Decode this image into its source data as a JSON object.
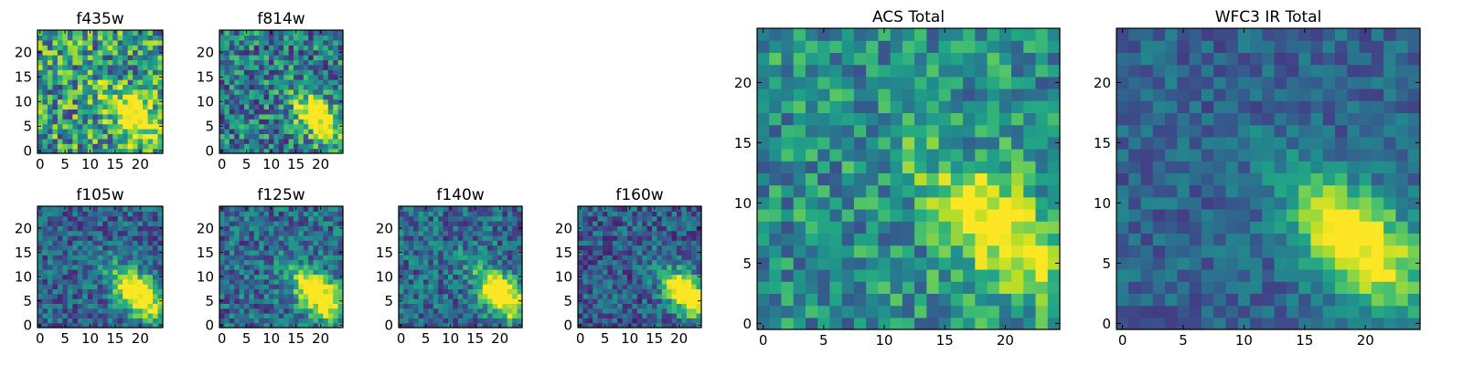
{
  "figure": {
    "colormap": "viridis",
    "pixel_grid": [
      25,
      25
    ]
  },
  "chart_data": [
    {
      "type": "heatmap",
      "title": "f435w",
      "xticks": [
        0,
        5,
        10,
        15,
        20
      ],
      "yticks": [
        0,
        5,
        10,
        15,
        20
      ],
      "xlim": [
        0,
        24
      ],
      "ylim": [
        0,
        24
      ],
      "source_peak": [
        20,
        6
      ],
      "source_width": 4.0,
      "trail_strength": 0.45,
      "peak_level": 0.55,
      "background_level": 0.55,
      "noise_level": 0.38,
      "seed": 11
    },
    {
      "type": "heatmap",
      "title": "f814w",
      "xticks": [
        0,
        5,
        10,
        15,
        20
      ],
      "yticks": [
        0,
        5,
        10,
        15,
        20
      ],
      "xlim": [
        0,
        24
      ],
      "ylim": [
        0,
        24
      ],
      "source_peak": [
        20,
        6
      ],
      "source_width": 3.4,
      "trail_strength": 0.5,
      "peak_level": 0.7,
      "background_level": 0.42,
      "noise_level": 0.32,
      "seed": 23
    },
    {
      "type": "heatmap",
      "title": "f105w",
      "xticks": [
        0,
        5,
        10,
        15,
        20
      ],
      "yticks": [
        0,
        5,
        10,
        15,
        20
      ],
      "xlim": [
        0,
        24
      ],
      "ylim": [
        0,
        24
      ],
      "source_peak": [
        20,
        6
      ],
      "source_width": 3.6,
      "trail_strength": 0.55,
      "peak_level": 0.85,
      "background_level": 0.32,
      "noise_level": 0.22,
      "seed": 37
    },
    {
      "type": "heatmap",
      "title": "f125w",
      "xticks": [
        0,
        5,
        10,
        15,
        20
      ],
      "yticks": [
        0,
        5,
        10,
        15,
        20
      ],
      "xlim": [
        0,
        24
      ],
      "ylim": [
        0,
        24
      ],
      "source_peak": [
        20,
        6
      ],
      "source_width": 3.6,
      "trail_strength": 0.6,
      "peak_level": 0.85,
      "background_level": 0.35,
      "noise_level": 0.24,
      "seed": 41
    },
    {
      "type": "heatmap",
      "title": "f140w",
      "xticks": [
        0,
        5,
        10,
        15,
        20
      ],
      "yticks": [
        0,
        5,
        10,
        15,
        20
      ],
      "xlim": [
        0,
        24
      ],
      "ylim": [
        0,
        24
      ],
      "source_peak": [
        21,
        6
      ],
      "source_width": 3.6,
      "trail_strength": 0.5,
      "peak_level": 0.85,
      "background_level": 0.35,
      "noise_level": 0.24,
      "seed": 53
    },
    {
      "type": "heatmap",
      "title": "f160w",
      "xticks": [
        0,
        5,
        10,
        15,
        20
      ],
      "yticks": [
        0,
        5,
        10,
        15,
        20
      ],
      "xlim": [
        0,
        24
      ],
      "ylim": [
        0,
        24
      ],
      "source_peak": [
        22,
        6
      ],
      "source_width": 3.4,
      "trail_strength": 0.5,
      "peak_level": 0.9,
      "background_level": 0.3,
      "noise_level": 0.22,
      "seed": 67
    },
    {
      "type": "heatmap",
      "title": "ACS Total",
      "xticks": [
        0,
        5,
        10,
        15,
        20
      ],
      "yticks": [
        0,
        5,
        10,
        15,
        20
      ],
      "xlim": [
        0,
        24
      ],
      "ylim": [
        0,
        24
      ],
      "source_peak": [
        20,
        7
      ],
      "source_width": 3.8,
      "trail_strength": 0.5,
      "peak_level": 0.5,
      "background_level": 0.5,
      "noise_level": 0.25,
      "seed": 79
    },
    {
      "type": "heatmap",
      "title": "WFC3 IR Total",
      "xticks": [
        0,
        5,
        10,
        15,
        20
      ],
      "yticks": [
        0,
        5,
        10,
        15,
        20
      ],
      "xlim": [
        0,
        24
      ],
      "ylim": [
        0,
        24
      ],
      "source_peak": [
        20,
        6
      ],
      "source_width": 3.8,
      "trail_strength": 0.6,
      "peak_level": 0.75,
      "background_level": 0.32,
      "noise_level": 0.14,
      "seed": 97
    }
  ]
}
